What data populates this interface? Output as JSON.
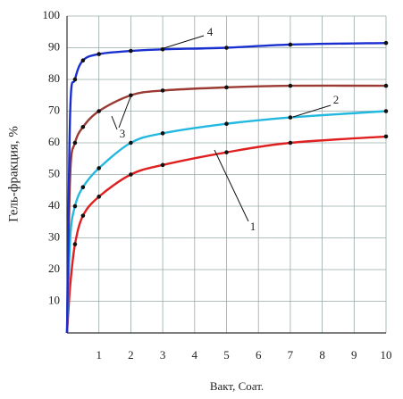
{
  "chart_data": {
    "type": "line",
    "xlabel": "Вакт, Соат.",
    "ylabel": "Гель-фракция, %",
    "x": [
      0,
      0.1,
      0.25,
      0.5,
      1,
      2,
      3,
      5,
      7,
      10
    ],
    "series": [
      {
        "name": "1",
        "color": "#e02020",
        "values": [
          0,
          15,
          28,
          37,
          43,
          50,
          53,
          57,
          60,
          62
        ]
      },
      {
        "name": "2",
        "color": "#22b8e0",
        "values": [
          0,
          30,
          40,
          46,
          52,
          60,
          63,
          66,
          68,
          70
        ]
      },
      {
        "name": "3",
        "color": "#9a3a32",
        "values": [
          0,
          50,
          60,
          65,
          70,
          75,
          76.5,
          77.5,
          78,
          78
        ]
      },
      {
        "name": "4",
        "color": "#1a2fd0",
        "values": [
          0,
          70,
          80,
          86,
          88,
          89,
          89.5,
          90,
          91,
          91.5
        ]
      }
    ],
    "xlim": [
      0,
      10
    ],
    "xticks": [
      1,
      2,
      3,
      4,
      5,
      6,
      7,
      8,
      9,
      10
    ],
    "ylim": [
      0,
      100
    ],
    "yticks": [
      10,
      20,
      30,
      40,
      50,
      60,
      70,
      80,
      90,
      100
    ],
    "grid": true
  }
}
